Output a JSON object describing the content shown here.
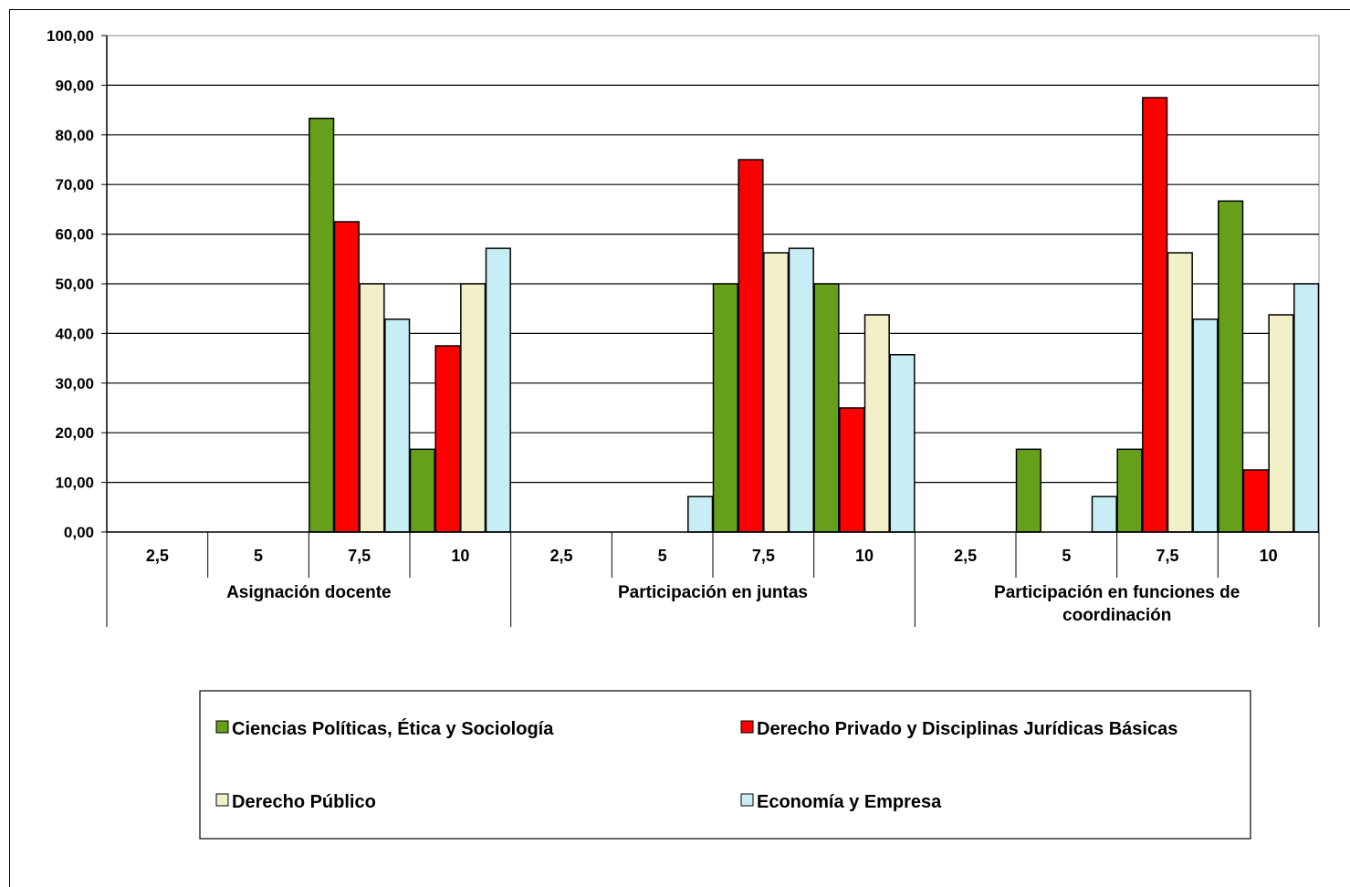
{
  "chart_data": {
    "type": "bar",
    "title": "",
    "xlabel": "",
    "ylabel": "",
    "ylim": [
      0,
      100
    ],
    "ytick_step": 10,
    "ytick_labels": [
      "0,00",
      "10,00",
      "20,00",
      "30,00",
      "40,00",
      "50,00",
      "60,00",
      "70,00",
      "80,00",
      "90,00",
      "100,00"
    ],
    "grid": true,
    "legend_position": "bottom",
    "groups": [
      {
        "label": "Asignación docente",
        "categories": [
          "2,5",
          "5",
          "7,5",
          "10"
        ]
      },
      {
        "label": "Participación en juntas",
        "categories": [
          "2,5",
          "5",
          "7,5",
          "10"
        ]
      },
      {
        "label": "Participación en funciones de coordinación",
        "label_lines": [
          "Participación en funciones de",
          "coordinación"
        ],
        "categories": [
          "2,5",
          "5",
          "7,5",
          "10"
        ]
      }
    ],
    "series": [
      {
        "name": "Ciencias Políticas, Ética y  Sociología",
        "color": "#66a01a",
        "values": [
          0,
          0,
          83.33,
          16.67,
          0,
          0,
          50.0,
          50.0,
          0,
          16.67,
          16.67,
          66.67
        ]
      },
      {
        "name": "Derecho Privado y Disciplinas Jurídicas Básicas",
        "color": "#ff0000",
        "values": [
          0,
          0,
          62.5,
          37.5,
          0,
          0,
          75.0,
          25.0,
          0,
          0,
          87.5,
          12.5
        ]
      },
      {
        "name": "Derecho Público",
        "color": "#f2f0c9",
        "values": [
          0,
          0,
          50.0,
          50.0,
          0,
          0,
          56.25,
          43.75,
          0,
          0,
          56.25,
          43.75
        ]
      },
      {
        "name": "Economía y Empresa",
        "color": "#c8eef5",
        "values": [
          0,
          0,
          42.86,
          57.14,
          0,
          7.14,
          57.14,
          35.71,
          0,
          7.14,
          42.86,
          50.0
        ]
      }
    ]
  }
}
